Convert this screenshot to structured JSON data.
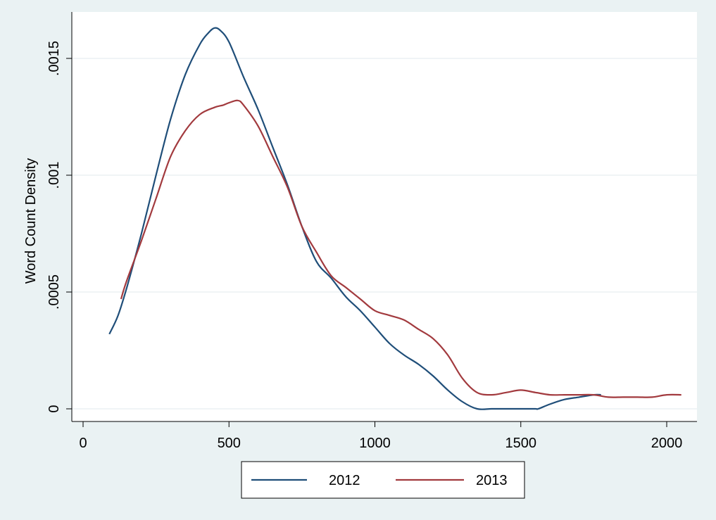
{
  "chart_data": {
    "type": "line",
    "title": "",
    "xlabel": "",
    "ylabel": "Word Count Density",
    "xlim": [
      0,
      2100
    ],
    "ylim": [
      0,
      0.0017
    ],
    "x_ticks": [
      0,
      500,
      1000,
      1500,
      2000
    ],
    "x_tick_labels": [
      "0",
      "500",
      "1000",
      "1500",
      "2000"
    ],
    "y_ticks": [
      0,
      0.0005,
      0.001,
      0.0015
    ],
    "y_tick_labels": [
      "0",
      ".0005",
      ".001",
      ".0015"
    ],
    "grid": "horizontal",
    "legend_position": "bottom",
    "series": [
      {
        "name": "2012",
        "color": "#1f4e79",
        "x": [
          90,
          120,
          150,
          200,
          250,
          300,
          350,
          400,
          430,
          450,
          470,
          500,
          550,
          600,
          650,
          700,
          750,
          800,
          850,
          900,
          950,
          1000,
          1050,
          1100,
          1150,
          1200,
          1250,
          1300,
          1350,
          1400,
          1450,
          1500,
          1550,
          1560,
          1600,
          1650,
          1700,
          1750,
          1775
        ],
        "y": [
          0.00032,
          0.0004,
          0.00052,
          0.00075,
          0.001,
          0.00124,
          0.00143,
          0.00156,
          0.00161,
          0.00163,
          0.00162,
          0.00157,
          0.00142,
          0.00128,
          0.00112,
          0.00096,
          0.00078,
          0.00063,
          0.00056,
          0.00048,
          0.00042,
          0.00035,
          0.00028,
          0.00023,
          0.00019,
          0.00014,
          8e-05,
          3e-05,
          0.0,
          0.0,
          0.0,
          0.0,
          0.0,
          0.0,
          2e-05,
          4e-05,
          5e-05,
          6e-05,
          6e-05
        ]
      },
      {
        "name": "2013",
        "color": "#a23a3e",
        "x": [
          130,
          150,
          200,
          250,
          300,
          350,
          400,
          450,
          480,
          500,
          530,
          550,
          600,
          650,
          700,
          750,
          800,
          850,
          900,
          950,
          1000,
          1050,
          1100,
          1150,
          1200,
          1250,
          1300,
          1350,
          1400,
          1450,
          1500,
          1550,
          1600,
          1650,
          1700,
          1750,
          1800,
          1850,
          1900,
          1950,
          2000,
          2050
        ],
        "y": [
          0.00047,
          0.00055,
          0.00072,
          0.0009,
          0.00108,
          0.00119,
          0.00126,
          0.00129,
          0.0013,
          0.00131,
          0.00132,
          0.0013,
          0.00121,
          0.00108,
          0.00095,
          0.00078,
          0.00067,
          0.00057,
          0.00052,
          0.00047,
          0.00042,
          0.0004,
          0.00038,
          0.00034,
          0.0003,
          0.00023,
          0.00013,
          7e-05,
          6e-05,
          7e-05,
          8e-05,
          7e-05,
          6e-05,
          6e-05,
          6e-05,
          6e-05,
          5e-05,
          5e-05,
          5e-05,
          5e-05,
          6e-05,
          6e-05
        ]
      }
    ]
  }
}
